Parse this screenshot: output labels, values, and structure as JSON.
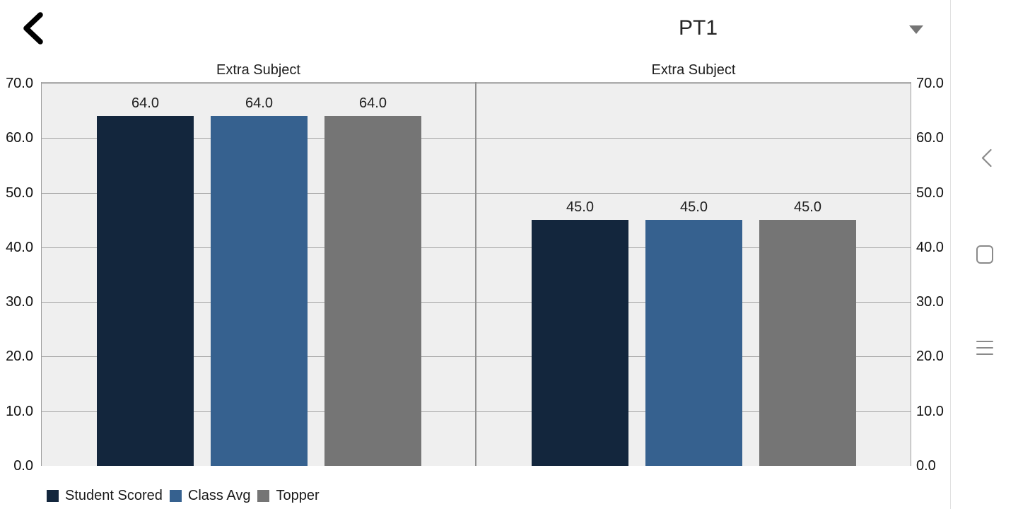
{
  "header": {
    "selected_exam": "PT1"
  },
  "chart_data": [
    {
      "type": "bar",
      "title": "Extra Subject",
      "categories": [
        "Student Scored",
        "Class Avg",
        "Topper"
      ],
      "values": [
        64.0,
        64.0,
        64.0
      ],
      "bar_value_labels": [
        "64.0",
        "64.0",
        "64.0"
      ],
      "ylim": [
        0,
        70
      ],
      "ytick_labels": [
        "70.0",
        "60.0",
        "50.0",
        "40.0",
        "30.0",
        "20.0",
        "10.0",
        "0.0"
      ],
      "grid": "horizontal",
      "legend_position": "bottom-left",
      "series_colors": [
        "#13263d",
        "#36618f",
        "#757575"
      ]
    },
    {
      "type": "bar",
      "title": "Extra Subject",
      "categories": [
        "Student Scored",
        "Class Avg",
        "Topper"
      ],
      "values": [
        45.0,
        45.0,
        45.0
      ],
      "bar_value_labels": [
        "45.0",
        "45.0",
        "45.0"
      ],
      "ylim": [
        0,
        70
      ],
      "ytick_labels": [
        "70.0",
        "60.0",
        "50.0",
        "40.0",
        "30.0",
        "20.0",
        "10.0",
        "0.0"
      ],
      "grid": "horizontal",
      "legend_position": "bottom-left",
      "series_colors": [
        "#13263d",
        "#36618f",
        "#757575"
      ]
    }
  ],
  "legend": {
    "items": [
      {
        "label": "Student Scored",
        "color": "#13263d"
      },
      {
        "label": "Class Avg",
        "color": "#36618f"
      },
      {
        "label": "Topper",
        "color": "#757575"
      }
    ]
  },
  "nav_rail": {
    "icons": [
      "back-chevron",
      "home-square",
      "recents-lines"
    ]
  },
  "colors": {
    "plot_background": "#efefef",
    "grid_line": "#a2a2a2",
    "plot_border": "#9e9e9e",
    "panel_divider": "#8f8f8f",
    "bar_navy": "#13263d",
    "bar_blue": "#36618f",
    "bar_gray": "#757575",
    "nav_icon": "#8a8a8a",
    "dropdown_caret": "#757575"
  }
}
